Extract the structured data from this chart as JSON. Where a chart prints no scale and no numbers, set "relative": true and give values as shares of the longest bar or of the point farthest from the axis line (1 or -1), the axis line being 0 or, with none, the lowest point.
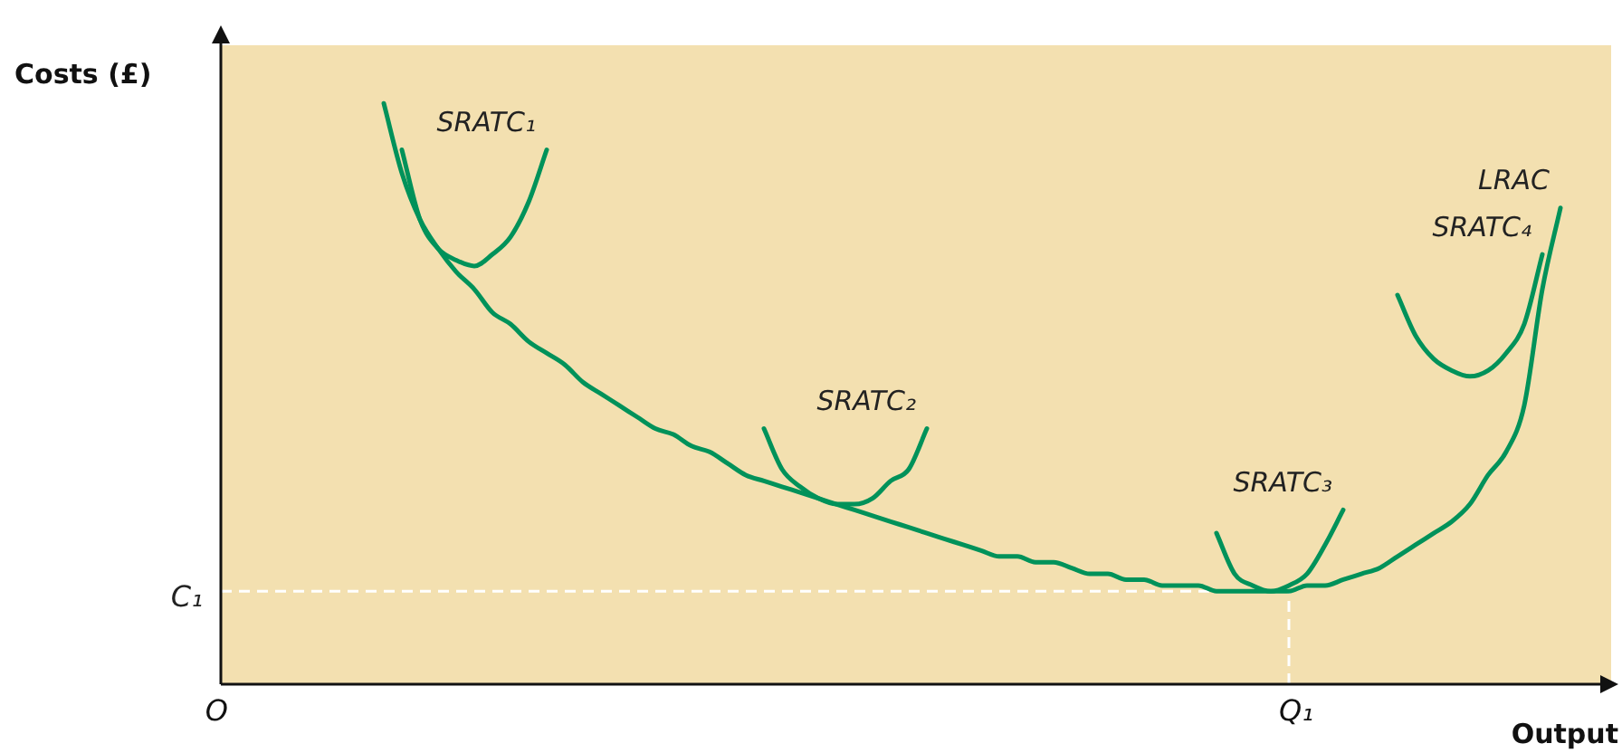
{
  "chart_data": {
    "type": "line",
    "relative": true,
    "marker": "none",
    "xlabel": "Output",
    "ylabel": "Costs (£)",
    "annotations": [
      "O",
      "Q₁"
    ],
    "categories": [
      null,
      null,
      null,
      null,
      null,
      null,
      null,
      null,
      null,
      null,
      null,
      null,
      null,
      null,
      null,
      null,
      null,
      null,
      null,
      null,
      null,
      null,
      null,
      null,
      null,
      null,
      null,
      null,
      null,
      null,
      null,
      null,
      null,
      null,
      null,
      null,
      null,
      null,
      null,
      null,
      null,
      null,
      null,
      null,
      null,
      null,
      null,
      null,
      null,
      null,
      null,
      null,
      null,
      null,
      null,
      null,
      null,
      null,
      null,
      null,
      null,
      null,
      null,
      null,
      null,
      null,
      null,
      null,
      null,
      null,
      null,
      null,
      null,
      null,
      null,
      null
    ],
    "series": [
      {
        "name": "LRAC",
        "color": "#00925a",
        "values": [
          null,
          null,
          null,
          null,
          null,
          null,
          null,
          null,
          null,
          1.0,
          0.88,
          0.8,
          0.75,
          0.71,
          0.68,
          0.64,
          0.62,
          0.59,
          0.57,
          0.55,
          0.52,
          0.5,
          0.48,
          0.46,
          0.44,
          0.43,
          0.41,
          0.4,
          0.38,
          0.36,
          0.35,
          0.34,
          0.33,
          0.32,
          0.31,
          0.3,
          0.29,
          0.28,
          0.27,
          0.26,
          0.25,
          0.24,
          0.23,
          0.22,
          0.22,
          0.21,
          0.21,
          0.2,
          0.19,
          0.19,
          0.18,
          0.18,
          0.17,
          0.17,
          0.17,
          0.16,
          0.16,
          0.16,
          0.16,
          0.16,
          0.17,
          0.17,
          0.18,
          0.19,
          0.2,
          0.22,
          0.24,
          0.26,
          0.28,
          0.31,
          0.36,
          0.4,
          0.48,
          0.68,
          0.82,
          null
        ]
      },
      {
        "name": "SRATC₁",
        "color": "#00925a",
        "values": [
          null,
          null,
          null,
          null,
          null,
          null,
          null,
          null,
          null,
          null,
          0.92,
          0.8,
          0.75,
          0.73,
          0.72,
          0.74,
          0.77,
          0.83,
          0.92,
          null,
          null,
          null,
          null,
          null,
          null,
          null,
          null,
          null,
          null,
          null,
          null,
          null,
          null,
          null,
          null,
          null,
          null,
          null,
          null,
          null,
          null,
          null,
          null,
          null,
          null,
          null,
          null,
          null,
          null,
          null,
          null,
          null,
          null,
          null,
          null,
          null,
          null,
          null,
          null,
          null,
          null,
          null,
          null,
          null,
          null,
          null,
          null,
          null,
          null,
          null,
          null,
          null,
          null,
          null,
          null,
          null
        ]
      },
      {
        "name": "SRATC₂",
        "color": "#00925a",
        "values": [
          null,
          null,
          null,
          null,
          null,
          null,
          null,
          null,
          null,
          null,
          null,
          null,
          null,
          null,
          null,
          null,
          null,
          null,
          null,
          null,
          null,
          null,
          null,
          null,
          null,
          null,
          null,
          null,
          null,
          null,
          0.44,
          0.37,
          0.34,
          0.32,
          0.31,
          0.31,
          0.32,
          0.35,
          0.37,
          0.44,
          null,
          null,
          null,
          null,
          null,
          null,
          null,
          null,
          null,
          null,
          null,
          null,
          null,
          null,
          null,
          null,
          null,
          null,
          null,
          null,
          null,
          null,
          null,
          null,
          null,
          null,
          null,
          null,
          null,
          null,
          null,
          null,
          null,
          null,
          null,
          null
        ]
      },
      {
        "name": "SRATC₃",
        "color": "#00925a",
        "values": [
          null,
          null,
          null,
          null,
          null,
          null,
          null,
          null,
          null,
          null,
          null,
          null,
          null,
          null,
          null,
          null,
          null,
          null,
          null,
          null,
          null,
          null,
          null,
          null,
          null,
          null,
          null,
          null,
          null,
          null,
          null,
          null,
          null,
          null,
          null,
          null,
          null,
          null,
          null,
          null,
          null,
          null,
          null,
          null,
          null,
          null,
          null,
          null,
          null,
          null,
          null,
          null,
          null,
          null,
          null,
          0.26,
          0.19,
          0.17,
          0.16,
          0.17,
          0.19,
          0.24,
          0.3,
          null,
          null,
          null,
          null,
          null,
          null,
          null,
          null,
          null,
          null,
          null,
          null,
          null
        ]
      },
      {
        "name": "SRATC₄",
        "color": "#00925a",
        "values": [
          null,
          null,
          null,
          null,
          null,
          null,
          null,
          null,
          null,
          null,
          null,
          null,
          null,
          null,
          null,
          null,
          null,
          null,
          null,
          null,
          null,
          null,
          null,
          null,
          null,
          null,
          null,
          null,
          null,
          null,
          null,
          null,
          null,
          null,
          null,
          null,
          null,
          null,
          null,
          null,
          null,
          null,
          null,
          null,
          null,
          null,
          null,
          null,
          null,
          null,
          null,
          null,
          null,
          null,
          null,
          null,
          null,
          null,
          null,
          null,
          null,
          null,
          null,
          null,
          null,
          0.67,
          0.6,
          0.56,
          0.54,
          0.53,
          0.54,
          0.57,
          0.62,
          0.74,
          null,
          null
        ]
      }
    ],
    "ref_lines": [
      {
        "axis": "y",
        "value": 0.16,
        "label": "C₁",
        "color": "#ffffff",
        "line_style": "dashed"
      }
    ]
  }
}
